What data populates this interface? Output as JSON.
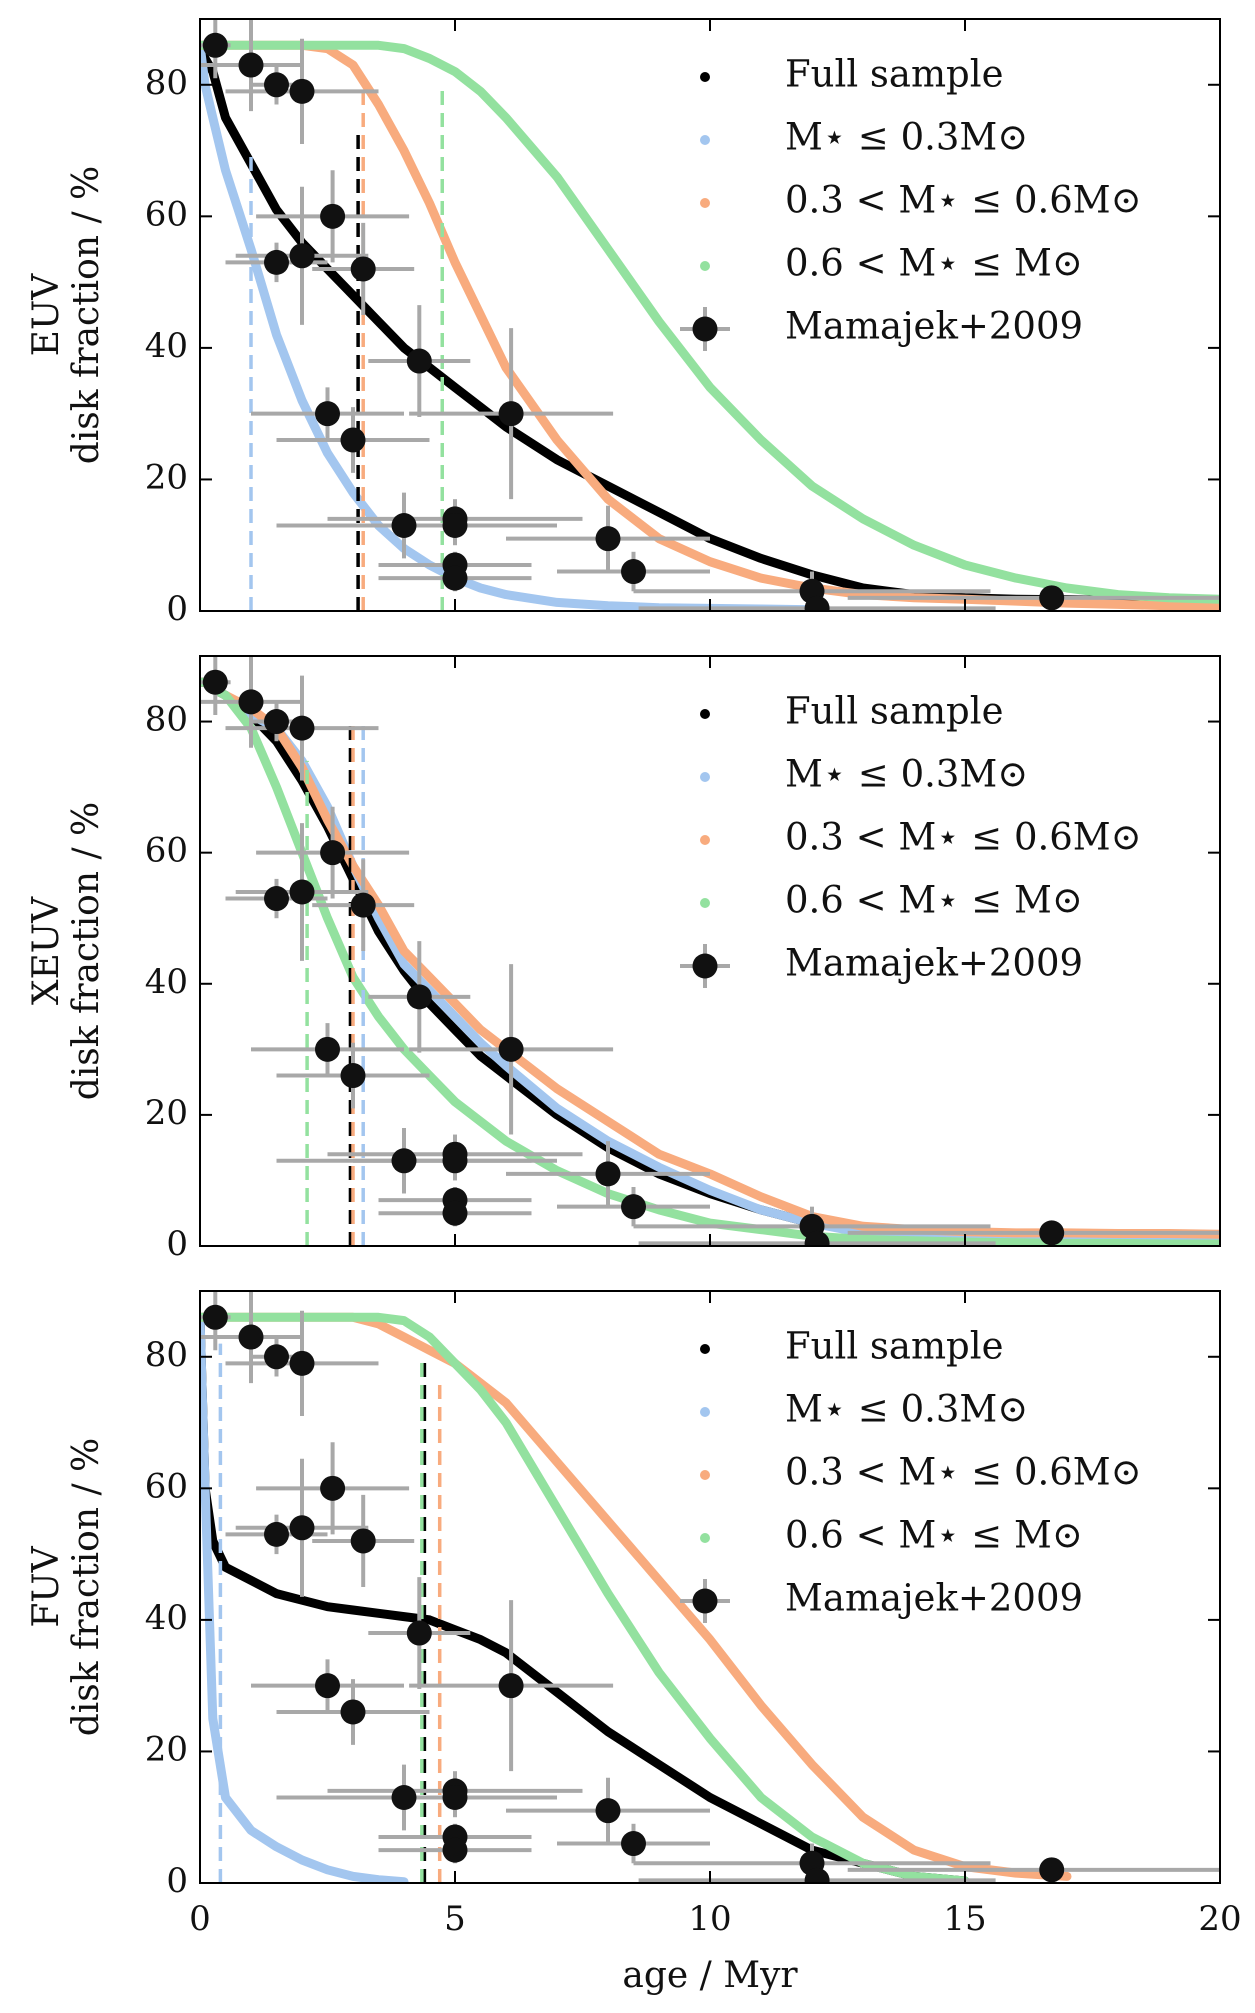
{
  "chart_data": [
    {
      "type": "line",
      "ylabel": [
        "EUV",
        "disk fraction / %"
      ],
      "xlim": [
        0,
        20
      ],
      "ylim": [
        0,
        90
      ],
      "xticks": [
        0,
        5,
        10,
        15,
        20
      ],
      "yticks": [
        0,
        20,
        40,
        60,
        80
      ],
      "x": [
        0,
        0.1,
        0.25,
        0.5,
        1,
        1.5,
        2,
        2.5,
        3,
        3.5,
        4,
        4.5,
        5,
        5.5,
        6,
        7,
        8,
        9,
        10,
        11,
        12,
        13,
        14,
        15,
        16,
        17,
        18,
        19,
        20
      ],
      "series": [
        {
          "name": "Full sample",
          "color": "#000000",
          "median": 3.1,
          "median_top": 73,
          "values": [
            86,
            84,
            82,
            75,
            68,
            61,
            56,
            52,
            48,
            44,
            40,
            37,
            34,
            31,
            28,
            23,
            19,
            15,
            11,
            8,
            5.5,
            3.5,
            2.5,
            2,
            1.8,
            1.7,
            1.6,
            1.5,
            1.5
          ]
        },
        {
          "name": "M⋆ ≤ 0.3M⊙",
          "color": "#a3c6ef",
          "median": 1.0,
          "median_top": 70,
          "values": [
            86,
            80,
            75,
            67,
            55,
            42,
            32,
            24,
            18,
            13,
            9.5,
            7,
            5,
            3.5,
            2.5,
            1.3,
            0.8,
            0.5,
            0.4,
            0.3,
            0.2,
            null,
            null,
            null,
            null,
            null,
            null,
            null,
            null
          ]
        },
        {
          "name": "0.3 < M⋆ ≤ 0.6M⊙",
          "color": "#f8ab7e",
          "median": 3.2,
          "median_top": 79,
          "values": [
            86,
            86,
            86,
            86,
            86,
            86,
            86,
            85.5,
            83,
            77,
            70,
            62,
            53,
            45,
            37,
            26,
            17,
            11,
            7.5,
            5,
            3.5,
            2.5,
            2,
            1.8,
            1.5,
            1.2,
            1,
            0.8,
            0.6
          ]
        },
        {
          "name": "0.6 < M⋆ ≤ M⊙",
          "color": "#93e19f",
          "median": 4.75,
          "median_top": 80,
          "values": [
            86,
            86,
            86,
            86,
            86,
            86,
            86,
            86,
            86,
            86,
            85.5,
            84,
            82,
            79,
            75,
            66,
            55,
            44,
            34,
            26,
            19,
            14,
            10,
            7,
            5,
            3.5,
            2.5,
            2,
            1.8
          ]
        }
      ],
      "points": {
        "name": "Mamajek+2009",
        "color": "#111111",
        "err_color": "#a8a8a8",
        "x": [
          0.3,
          1.0,
          1.5,
          2.0,
          2.6,
          1.5,
          2.0,
          3.2,
          4.3,
          6.1,
          2.5,
          3.0,
          4.0,
          5.0,
          5.0,
          5.0,
          5.0,
          8.0,
          8.5,
          12.0,
          12.1,
          16.7
        ],
        "y": [
          86,
          83,
          80,
          79,
          60,
          53,
          54,
          52,
          38,
          30,
          30,
          26,
          13,
          14,
          13,
          7,
          5,
          11,
          6,
          3,
          0.4,
          2
        ],
        "xerr": [
          0.3,
          1.0,
          0.5,
          1.5,
          1.5,
          1.0,
          1.3,
          1.0,
          1.0,
          2.0,
          1.5,
          1.5,
          2.5,
          2.5,
          2.0,
          1.5,
          1.5,
          2.0,
          1.5,
          3.5,
          3.5,
          4.0
        ],
        "yerr": [
          5,
          7,
          3,
          8,
          7,
          3,
          10.5,
          7,
          8.5,
          13,
          4,
          5,
          5,
          3,
          3,
          2,
          2,
          5,
          3,
          3,
          1,
          1
        ]
      }
    },
    {
      "type": "line",
      "ylabel": [
        "XEUV",
        "disk fraction / %"
      ],
      "xlim": [
        0,
        20
      ],
      "ylim": [
        0,
        90
      ],
      "xticks": [
        0,
        5,
        10,
        15,
        20
      ],
      "yticks": [
        0,
        20,
        40,
        60,
        80
      ],
      "x": [
        0,
        0.1,
        0.25,
        0.5,
        1,
        1.5,
        2,
        2.5,
        3,
        3.5,
        4,
        4.5,
        5,
        5.5,
        6,
        7,
        8,
        9,
        10,
        11,
        12,
        13,
        14,
        15,
        16,
        17,
        18,
        19,
        20
      ],
      "series": [
        {
          "name": "Full sample",
          "color": "#000000",
          "median": 2.95,
          "median_top": 80,
          "values": [
            86,
            86,
            85,
            84,
            81,
            77,
            71,
            64,
            56,
            48,
            42,
            37,
            33,
            29,
            26,
            20,
            15,
            11,
            8,
            5.5,
            3.5,
            2.5,
            2,
            1.8,
            1.6,
            1.5,
            1.4,
            1.3,
            1.2
          ]
        },
        {
          "name": "M⋆ ≤ 0.3M⊙",
          "color": "#a3c6ef",
          "median": 3.2,
          "median_top": 80,
          "values": [
            86,
            86,
            85,
            84,
            81,
            79,
            74,
            67,
            58,
            50,
            43,
            39,
            35,
            31,
            27.5,
            21,
            16,
            12,
            8.5,
            5.5,
            3.5,
            2,
            1.5,
            1.2,
            1,
            0.9,
            0.8,
            0.7,
            0.6
          ]
        },
        {
          "name": "0.3 < M⋆ ≤ 0.6M⊙",
          "color": "#f8ab7e",
          "median": 3.0,
          "median_top": 80,
          "values": [
            86,
            86,
            85,
            84,
            82,
            79,
            73,
            65,
            58,
            52,
            45,
            41,
            37,
            33,
            30,
            24,
            19,
            14,
            11,
            7.5,
            4.5,
            3,
            2.5,
            2.2,
            2,
            2,
            1.9,
            1.9,
            1.8
          ]
        },
        {
          "name": "0.6 < M⋆ ≤ M⊙",
          "color": "#93e19f",
          "median": 2.1,
          "median_top": 74,
          "values": [
            86,
            86,
            85,
            84,
            79,
            70,
            60,
            50,
            41,
            35,
            30,
            26,
            22,
            19,
            16,
            11.5,
            8,
            5.5,
            3.5,
            2.5,
            1.5,
            1,
            0.8,
            0.6,
            0.5,
            0.4,
            0.4,
            0.3,
            0.3
          ]
        }
      ],
      "points": {
        "name": "Mamajek+2009",
        "color": "#111111",
        "err_color": "#a8a8a8",
        "x": [
          0.3,
          1.0,
          1.5,
          2.0,
          2.6,
          1.5,
          2.0,
          3.2,
          4.3,
          6.1,
          2.5,
          3.0,
          4.0,
          5.0,
          5.0,
          5.0,
          5.0,
          8.0,
          8.5,
          12.0,
          12.1,
          16.7
        ],
        "y": [
          86,
          83,
          80,
          79,
          60,
          53,
          54,
          52,
          38,
          30,
          30,
          26,
          13,
          14,
          13,
          7,
          5,
          11,
          6,
          3,
          0.4,
          2
        ],
        "xerr": [
          0.3,
          1.0,
          0.5,
          1.5,
          1.5,
          1.0,
          1.3,
          1.0,
          1.0,
          2.0,
          1.5,
          1.5,
          2.5,
          2.5,
          2.0,
          1.5,
          1.5,
          2.0,
          1.5,
          3.5,
          3.5,
          4.0
        ],
        "yerr": [
          5,
          7,
          3,
          8,
          7,
          3,
          10.5,
          7,
          8.5,
          13,
          4,
          5,
          5,
          3,
          3,
          2,
          2,
          5,
          3,
          3,
          1,
          1
        ]
      }
    },
    {
      "type": "line",
      "ylabel": [
        "FUV",
        "disk fraction / %"
      ],
      "xlabel": "age / Myr",
      "xlim": [
        0,
        20
      ],
      "ylim": [
        0,
        90
      ],
      "xticks": [
        0,
        5,
        10,
        15,
        20
      ],
      "yticks": [
        0,
        20,
        40,
        60,
        80
      ],
      "x": [
        0,
        0.1,
        0.25,
        0.5,
        1,
        1.5,
        2,
        2.5,
        3,
        3.5,
        4,
        4.5,
        5,
        5.5,
        6,
        7,
        8,
        9,
        10,
        11,
        12,
        13,
        14,
        15,
        16,
        17,
        18,
        19,
        20
      ],
      "series": [
        {
          "name": "Full sample",
          "color": "#000000",
          "median": 4.4,
          "median_top": 80,
          "values": [
            86,
            60,
            52,
            48,
            46,
            44,
            43,
            42,
            41.5,
            41,
            40.5,
            40,
            38.5,
            37,
            35,
            29,
            23,
            18,
            13,
            9,
            5,
            3,
            1,
            0.3,
            null,
            null,
            null,
            null,
            null
          ]
        },
        {
          "name": "M⋆ ≤ 0.3M⊙",
          "color": "#a3c6ef",
          "median": 0.4,
          "median_top": 82,
          "values": [
            86,
            60,
            25,
            13,
            8,
            5.5,
            3.5,
            2,
            1,
            0.5,
            0.2,
            null,
            null,
            null,
            null,
            null,
            null,
            null,
            null,
            null,
            null,
            null,
            null,
            null,
            null,
            null,
            null,
            null,
            null
          ]
        },
        {
          "name": "0.3 < M⋆ ≤ 0.6M⊙",
          "color": "#f8ab7e",
          "median": 4.7,
          "median_top": 76,
          "values": [
            86,
            86,
            86,
            86,
            86,
            86,
            86,
            86,
            86,
            85,
            83,
            81,
            79,
            76,
            73,
            64,
            55,
            46,
            37,
            27,
            18,
            10,
            5,
            2.5,
            1.5,
            1,
            null,
            null,
            null
          ]
        },
        {
          "name": "0.6 < M⋆ ≤ M⊙",
          "color": "#93e19f",
          "median": 4.35,
          "median_top": 80,
          "values": [
            86,
            86,
            86,
            86,
            86,
            86,
            86,
            86,
            86,
            86,
            85.5,
            83,
            79,
            75,
            70,
            57,
            44,
            32,
            22,
            13,
            7,
            3,
            1,
            0.3,
            null,
            null,
            null,
            null,
            null
          ]
        }
      ],
      "points": {
        "name": "Mamajek+2009",
        "color": "#111111",
        "err_color": "#a8a8a8",
        "x": [
          0.3,
          1.0,
          1.5,
          2.0,
          2.6,
          1.5,
          2.0,
          3.2,
          4.3,
          6.1,
          2.5,
          3.0,
          4.0,
          5.0,
          5.0,
          5.0,
          5.0,
          8.0,
          8.5,
          12.0,
          12.1,
          16.7
        ],
        "y": [
          86,
          83,
          80,
          79,
          60,
          53,
          54,
          52,
          38,
          30,
          30,
          26,
          13,
          14,
          13,
          7,
          5,
          11,
          6,
          3,
          0.4,
          2
        ],
        "xerr": [
          0.3,
          1.0,
          0.5,
          1.5,
          1.5,
          1.0,
          1.3,
          1.0,
          1.0,
          2.0,
          1.5,
          1.5,
          2.5,
          2.5,
          2.0,
          1.5,
          1.5,
          2.0,
          1.5,
          3.5,
          3.5,
          4.0
        ],
        "yerr": [
          5,
          7,
          3,
          8,
          7,
          3,
          10.5,
          7,
          8.5,
          13,
          4,
          5,
          5,
          3,
          3,
          2,
          2,
          5,
          3,
          3,
          1,
          1
        ]
      }
    }
  ]
}
